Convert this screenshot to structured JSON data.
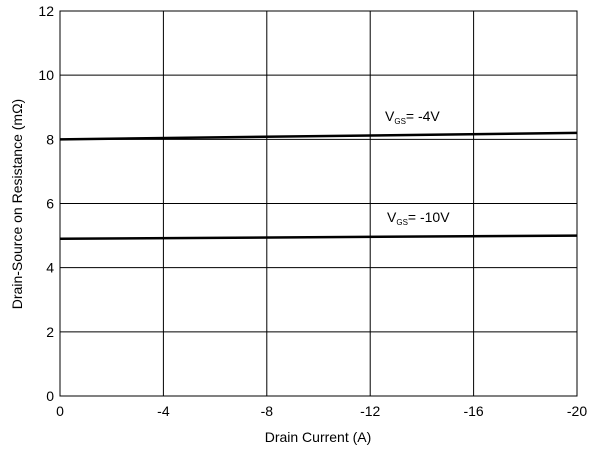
{
  "chart_data": {
    "type": "line",
    "x_label": "Drain Current (A)",
    "y_label": "Drain-Source on Resistance (mΩ)",
    "xlim": [
      0,
      -20
    ],
    "xticks": [
      0,
      -4,
      -8,
      -12,
      -16,
      -20
    ],
    "ylim": [
      0,
      12
    ],
    "yticks": [
      0,
      2,
      4,
      6,
      8,
      10,
      12
    ],
    "grid": true,
    "series": [
      {
        "name": [
          "V",
          "GS",
          "= -4V"
        ],
        "color": "#000000",
        "x": [
          0,
          -20
        ],
        "values": [
          8.0,
          8.2
        ]
      },
      {
        "name": [
          "V",
          "GS",
          "= -10V"
        ],
        "color": "#000000",
        "x": [
          0,
          -20
        ],
        "values": [
          4.9,
          5.0
        ]
      }
    ]
  }
}
